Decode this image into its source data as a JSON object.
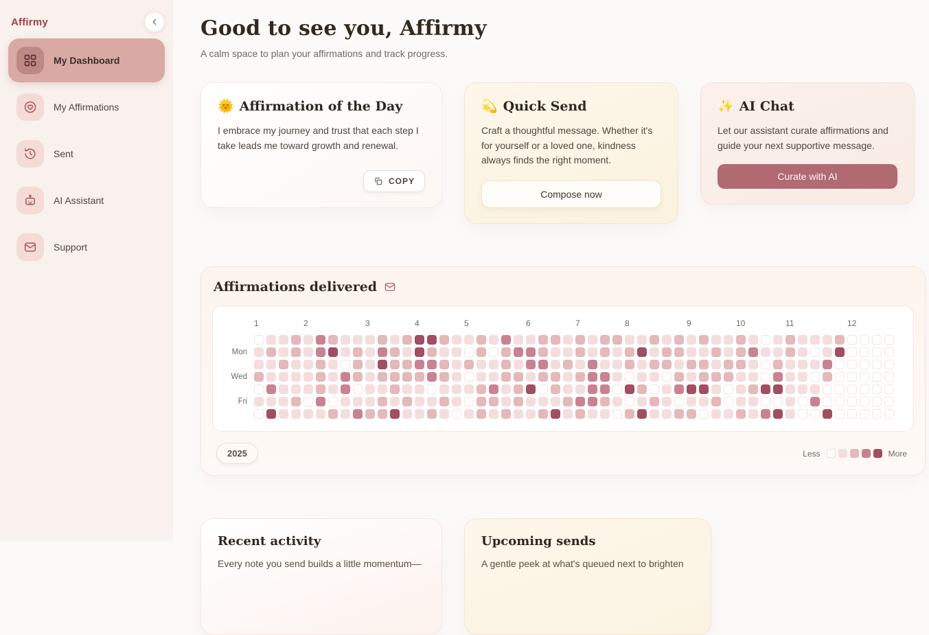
{
  "brand": "Affirmy",
  "sidebar": {
    "items": [
      {
        "label": "My Dashboard",
        "active": true
      },
      {
        "label": "My Affirmations",
        "active": false
      },
      {
        "label": "Sent",
        "active": false
      },
      {
        "label": "AI Assistant",
        "active": false
      },
      {
        "label": "Support",
        "active": false
      }
    ]
  },
  "header": {
    "title": "Good to see you, Affirmy",
    "subtitle": "A calm space to plan your affirmations and track progress."
  },
  "cards": {
    "affirmation": {
      "emoji": "🌞",
      "title": "Affirmation of the Day",
      "body": "I embrace my journey and trust that each step I take leads me toward growth and renewal.",
      "copy_label": "COPY"
    },
    "quick_send": {
      "emoji": "💫",
      "title": "Quick Send",
      "body": "Craft a thoughtful message. Whether it's for yourself or a loved one, kindness always finds the right moment.",
      "button": "Compose now"
    },
    "ai_chat": {
      "emoji": "✨",
      "title": "AI Chat",
      "body": "Let our assistant curate affirmations and guide your next supportive message.",
      "button": "Curate with AI"
    }
  },
  "delivered": {
    "title": "Affirmations delivered",
    "year": "2025",
    "legend": {
      "less": "Less",
      "more": "More"
    },
    "chart_data": {
      "type": "heatmap",
      "weeks": 52,
      "months": [
        "1",
        "2",
        "3",
        "4",
        "5",
        "6",
        "7",
        "8",
        "9",
        "10",
        "11",
        "12"
      ],
      "day_labels": {
        "1": "Mon",
        "3": "Wed",
        "5": "Fri"
      },
      "colors": [
        "#ffffff",
        "#f4dedd",
        "#e5b8ba",
        "#ca8292",
        "#a14e62"
      ],
      "levels": [
        "0112132111212442112131122121221121212112101211120000",
        "1212134121321421102023321121212412211212311210140000",
        "1121121021422332121121331213112122122122102111300000",
        "2111121321222232101122122123310110212221103110200000",
        "0311121301121101112312402113304201344101244111000000",
        "1112030111212112102212111233210121011201100103000000",
        "0411112132241121012121124121102411220112134100400000"
      ]
    }
  },
  "activity": {
    "title": "Recent activity",
    "body": "Every note you send builds a little momentum—"
  },
  "upcoming": {
    "title": "Upcoming sends",
    "body": "A gentle peek at what's queued next to brighten"
  }
}
